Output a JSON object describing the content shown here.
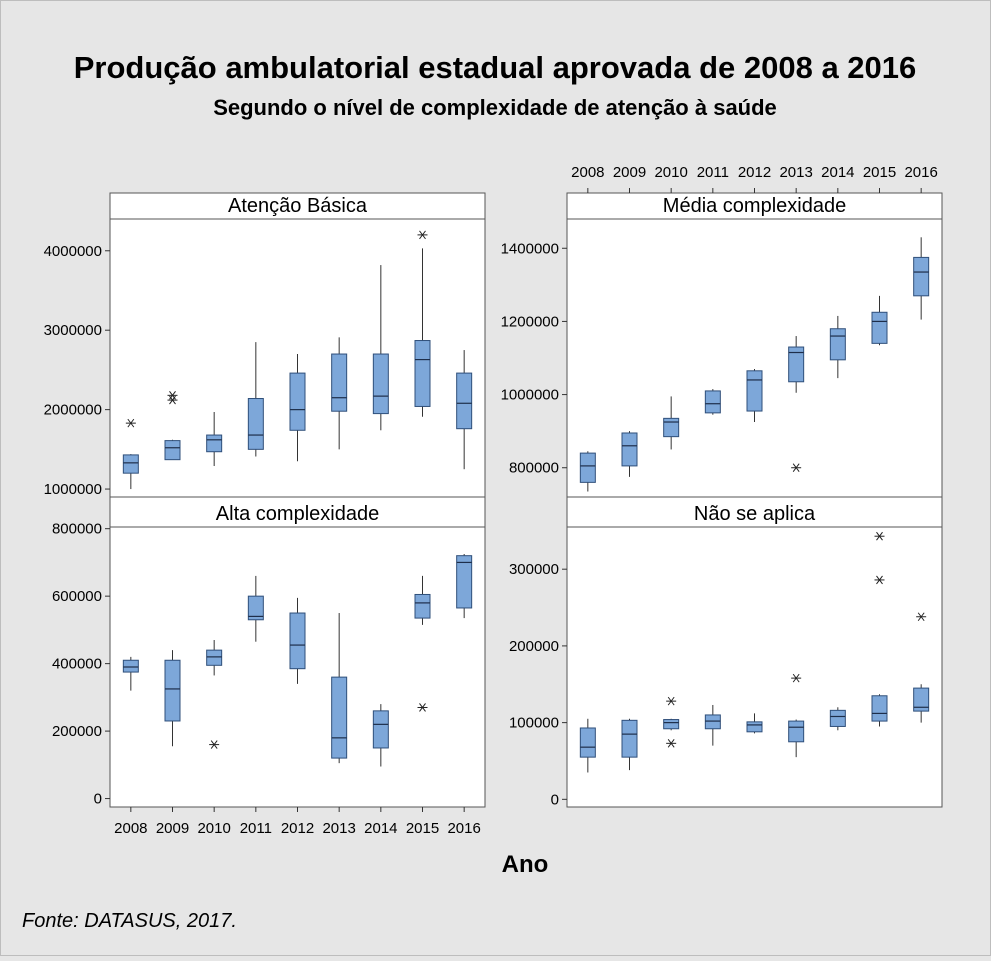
{
  "title": "Produção ambulatorial estadual aprovada de 2008 a 2016",
  "subtitle": "Segundo o nível de complexidade de atenção à saúde",
  "xlabel": "Ano",
  "source": "Fonte: DATASUS, 2017.",
  "colors": {
    "background": "#e6e6e6",
    "box_fill": "#7da7d9",
    "box_stroke": "#2f4f7a",
    "panel_fill": "#ffffff"
  },
  "chart_data": [
    {
      "type": "box",
      "title": "Atenção Básica",
      "categories": [
        "2008",
        "2009",
        "2010",
        "2011",
        "2012",
        "2013",
        "2014",
        "2015",
        "2016"
      ],
      "yticks": [
        1000000,
        2000000,
        3000000,
        4000000
      ],
      "ytick_labels": [
        "1000000",
        "2000000",
        "3000000",
        "4000000"
      ],
      "ylim": [
        900000,
        4400000
      ],
      "boxes": [
        {
          "min": 1000000,
          "q1": 1200000,
          "median": 1330000,
          "q3": 1430000,
          "max": 1440000,
          "outliers": [
            1830000
          ]
        },
        {
          "min": 1370000,
          "q1": 1370000,
          "median": 1520000,
          "q3": 1610000,
          "max": 1620000,
          "outliers": [
            2120000,
            2180000
          ]
        },
        {
          "min": 1290000,
          "q1": 1470000,
          "median": 1620000,
          "q3": 1680000,
          "max": 1970000,
          "outliers": []
        },
        {
          "min": 1410000,
          "q1": 1500000,
          "median": 1680000,
          "q3": 2140000,
          "max": 2850000,
          "outliers": []
        },
        {
          "min": 1350000,
          "q1": 1740000,
          "median": 2000000,
          "q3": 2460000,
          "max": 2700000,
          "outliers": []
        },
        {
          "min": 1500000,
          "q1": 1980000,
          "median": 2150000,
          "q3": 2700000,
          "max": 2910000,
          "outliers": []
        },
        {
          "min": 1740000,
          "q1": 1950000,
          "median": 2170000,
          "q3": 2700000,
          "max": 3820000,
          "outliers": []
        },
        {
          "min": 1910000,
          "q1": 2040000,
          "median": 2630000,
          "q3": 2870000,
          "max": 4030000,
          "outliers": [
            4200000
          ]
        },
        {
          "min": 1250000,
          "q1": 1760000,
          "median": 2080000,
          "q3": 2460000,
          "max": 2750000,
          "outliers": []
        }
      ]
    },
    {
      "type": "box",
      "title": "Média complexidade",
      "categories": [
        "2008",
        "2009",
        "2010",
        "2011",
        "2012",
        "2013",
        "2014",
        "2015",
        "2016"
      ],
      "yticks": [
        800000,
        1000000,
        1200000,
        1400000
      ],
      "ytick_labels": [
        "800000",
        "1000000",
        "1200000",
        "1400000"
      ],
      "ylim": [
        720000,
        1480000
      ],
      "boxes": [
        {
          "min": 735000,
          "q1": 760000,
          "median": 805000,
          "q3": 840000,
          "max": 845000,
          "outliers": []
        },
        {
          "min": 775000,
          "q1": 805000,
          "median": 860000,
          "q3": 895000,
          "max": 900000,
          "outliers": []
        },
        {
          "min": 850000,
          "q1": 885000,
          "median": 925000,
          "q3": 935000,
          "max": 995000,
          "outliers": []
        },
        {
          "min": 945000,
          "q1": 950000,
          "median": 975000,
          "q3": 1010000,
          "max": 1015000,
          "outliers": []
        },
        {
          "min": 925000,
          "q1": 955000,
          "median": 1040000,
          "q3": 1065000,
          "max": 1070000,
          "outliers": []
        },
        {
          "min": 1005000,
          "q1": 1035000,
          "median": 1115000,
          "q3": 1130000,
          "max": 1160000,
          "outliers": [
            800000
          ]
        },
        {
          "min": 1045000,
          "q1": 1095000,
          "median": 1160000,
          "q3": 1180000,
          "max": 1215000,
          "outliers": []
        },
        {
          "min": 1135000,
          "q1": 1140000,
          "median": 1200000,
          "q3": 1225000,
          "max": 1270000,
          "outliers": []
        },
        {
          "min": 1205000,
          "q1": 1270000,
          "median": 1335000,
          "q3": 1375000,
          "max": 1430000,
          "outliers": []
        }
      ]
    },
    {
      "type": "box",
      "title": "Alta complexidade",
      "categories": [
        "2008",
        "2009",
        "2010",
        "2011",
        "2012",
        "2013",
        "2014",
        "2015",
        "2016"
      ],
      "yticks": [
        0,
        200000,
        400000,
        600000,
        800000
      ],
      "ytick_labels": [
        "0",
        "200000",
        "400000",
        "600000",
        "800000"
      ],
      "ylim": [
        -25000,
        805000
      ],
      "boxes": [
        {
          "min": 320000,
          "q1": 375000,
          "median": 390000,
          "q3": 410000,
          "max": 420000,
          "outliers": []
        },
        {
          "min": 155000,
          "q1": 230000,
          "median": 325000,
          "q3": 410000,
          "max": 440000,
          "outliers": []
        },
        {
          "min": 365000,
          "q1": 395000,
          "median": 420000,
          "q3": 440000,
          "max": 470000,
          "outliers": [
            160000
          ]
        },
        {
          "min": 465000,
          "q1": 530000,
          "median": 540000,
          "q3": 600000,
          "max": 660000,
          "outliers": []
        },
        {
          "min": 340000,
          "q1": 385000,
          "median": 455000,
          "q3": 550000,
          "max": 595000,
          "outliers": []
        },
        {
          "min": 105000,
          "q1": 120000,
          "median": 180000,
          "q3": 360000,
          "max": 550000,
          "outliers": []
        },
        {
          "min": 95000,
          "q1": 150000,
          "median": 220000,
          "q3": 260000,
          "max": 280000,
          "outliers": []
        },
        {
          "min": 515000,
          "q1": 535000,
          "median": 580000,
          "q3": 605000,
          "max": 660000,
          "outliers": [
            270000
          ]
        },
        {
          "min": 535000,
          "q1": 565000,
          "median": 700000,
          "q3": 720000,
          "max": 725000,
          "outliers": []
        }
      ]
    },
    {
      "type": "box",
      "title": "Não se aplica",
      "categories": [
        "2008",
        "2009",
        "2010",
        "2011",
        "2012",
        "2013",
        "2014",
        "2015",
        "2016"
      ],
      "yticks": [
        0,
        100000,
        200000,
        300000
      ],
      "ytick_labels": [
        "0",
        "100000",
        "200000",
        "300000"
      ],
      "ylim": [
        -10000,
        355000
      ],
      "boxes": [
        {
          "min": 35000,
          "q1": 55000,
          "median": 68000,
          "q3": 93000,
          "max": 105000,
          "outliers": []
        },
        {
          "min": 38000,
          "q1": 55000,
          "median": 85000,
          "q3": 103000,
          "max": 105000,
          "outliers": []
        },
        {
          "min": 90000,
          "q1": 92000,
          "median": 100000,
          "q3": 104000,
          "max": 105000,
          "outliers": [
            128000,
            73000
          ]
        },
        {
          "min": 70000,
          "q1": 92000,
          "median": 102000,
          "q3": 110000,
          "max": 123000,
          "outliers": []
        },
        {
          "min": 86000,
          "q1": 88000,
          "median": 97000,
          "q3": 101000,
          "max": 112000,
          "outliers": []
        },
        {
          "min": 55000,
          "q1": 75000,
          "median": 94000,
          "q3": 102000,
          "max": 104000,
          "outliers": [
            158000
          ]
        },
        {
          "min": 90000,
          "q1": 95000,
          "median": 108000,
          "q3": 116000,
          "max": 120000,
          "outliers": []
        },
        {
          "min": 95000,
          "q1": 102000,
          "median": 112000,
          "q3": 135000,
          "max": 137000,
          "outliers": [
            343000,
            286000
          ]
        },
        {
          "min": 100000,
          "q1": 115000,
          "median": 120000,
          "q3": 145000,
          "max": 150000,
          "outliers": [
            238000
          ]
        }
      ]
    }
  ]
}
